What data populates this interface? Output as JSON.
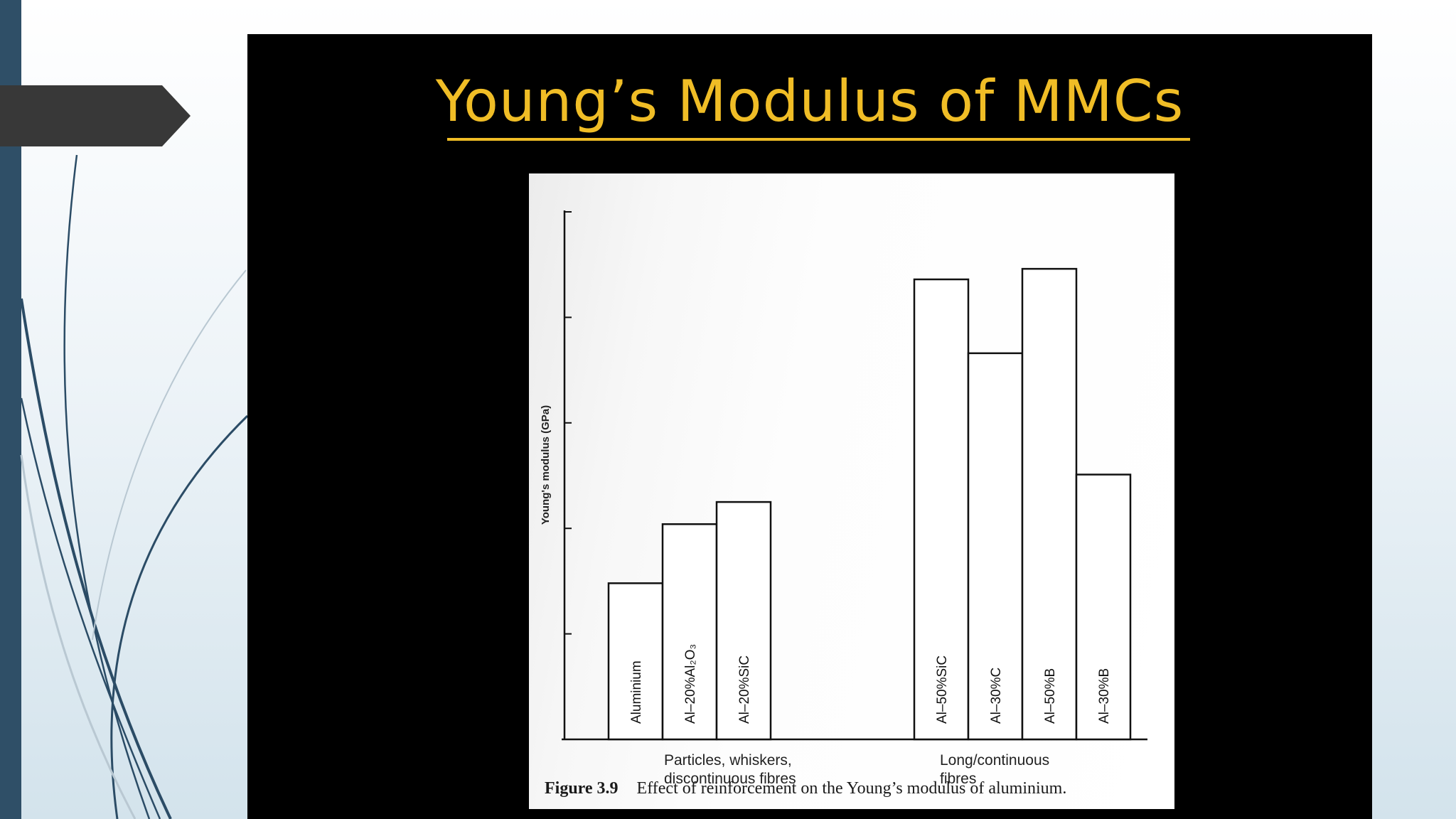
{
  "slide": {
    "title": "Young’s Modulus of MMCs",
    "title_color": "#f0bd26",
    "background_color": "#000000"
  },
  "decor": {
    "left_strip_color": "#2f4f67",
    "arrow_tab_color": "#383838",
    "swoosh_color": "#2b4c66",
    "swoosh_light_color": "#b9c8d2"
  },
  "chart_data": {
    "type": "bar",
    "ylabel": "Young's modulus   (GPa)",
    "yticks_count": 6,
    "ylim": [
      0,
      5
    ],
    "grid": false,
    "groups": [
      {
        "label_lines": [
          "Particles, whiskers,",
          "discontinuous fibres"
        ],
        "bars": [
          {
            "category": "Aluminium",
            "value": 1.48
          },
          {
            "category": "Al–20%Al₂O₃",
            "value": 2.04
          },
          {
            "category": "Al–20%SiC",
            "value": 2.25
          }
        ]
      },
      {
        "label_lines": [
          "Long/continuous",
          "fibres"
        ],
        "bars": [
          {
            "category": "Al–50%SiC",
            "value": 4.36
          },
          {
            "category": "Al–30%C",
            "value": 3.66
          },
          {
            "category": "Al–50%B",
            "value": 4.46
          },
          {
            "category": "Al–30%B",
            "value": 2.51
          }
        ]
      }
    ],
    "caption_number": "Figure 3.9",
    "caption_text": "Effect of reinforcement on the Young’s modulus of aluminium."
  }
}
